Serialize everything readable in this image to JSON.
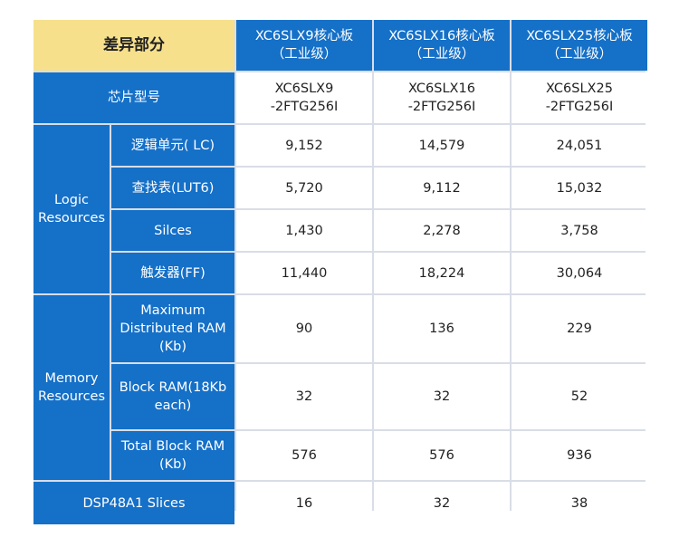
{
  "header": {
    "corner": "差异部分",
    "cols": [
      {
        "line1": "XC6SLX9核心板",
        "line2": "（工业级）"
      },
      {
        "line1": "XC6SLX16核心板",
        "line2": "（工业级）"
      },
      {
        "line1": "XC6SLX25核心板",
        "line2": "（工业级）"
      }
    ]
  },
  "chip_row": {
    "label": "芯片型号",
    "values": [
      {
        "line1": "XC6SLX9",
        "line2": "-2FTG256I"
      },
      {
        "line1": "XC6SLX16",
        "line2": "-2FTG256I"
      },
      {
        "line1": "XC6SLX25",
        "line2": "-2FTG256I"
      }
    ]
  },
  "logic_group": {
    "label_line1": "Logic",
    "label_line2": "Resources",
    "rows": [
      {
        "label": "逻辑单元( LC)",
        "values": [
          "9,152",
          "14,579",
          "24,051"
        ]
      },
      {
        "label": "查找表(LUT6)",
        "values": [
          "5,720",
          "9,112",
          "15,032"
        ]
      },
      {
        "label": "Silces",
        "values": [
          "1,430",
          "2,278",
          "3,758"
        ]
      },
      {
        "label": "触发器(FF)",
        "values": [
          "11,440",
          "18,224",
          "30,064"
        ]
      }
    ]
  },
  "memory_group": {
    "label_line1": "Memory",
    "label_line2": "Resources",
    "rows": [
      {
        "label_lines": [
          "Maximum",
          "Distributed RAM",
          "(Kb)"
        ],
        "values": [
          "90",
          "136",
          "229"
        ]
      },
      {
        "label_lines": [
          "Block RAM(18Kb",
          "each)"
        ],
        "values": [
          "32",
          "32",
          "52"
        ]
      },
      {
        "label_lines": [
          "Total Block RAM",
          "(Kb)"
        ],
        "values": [
          "576",
          "576",
          "936"
        ]
      }
    ]
  },
  "dsp_row": {
    "label": "DSP48A1 Slices",
    "values": [
      "16",
      "32",
      "38"
    ]
  },
  "colors": {
    "header_blue": "#1570c8",
    "corner_yellow": "#f6e08c",
    "grid_line": "#d9dde6"
  }
}
